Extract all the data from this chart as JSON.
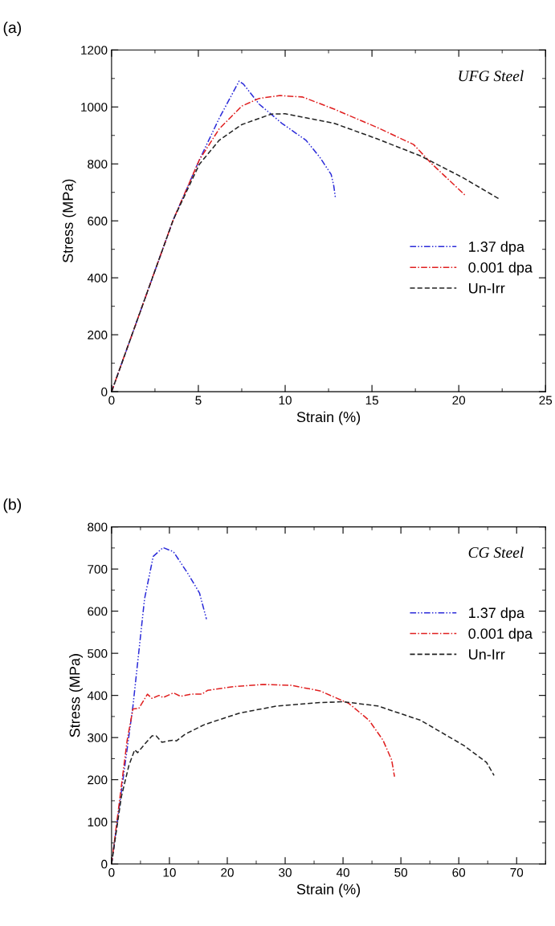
{
  "chart_data": [
    {
      "type": "line",
      "xlabel": "Strain (%)",
      "ylabel": "Stress (MPa)",
      "annotations": [
        "(a)",
        "UFG Steel"
      ],
      "xlim": [
        0,
        25
      ],
      "ylim": [
        0,
        1200
      ],
      "xticks": [
        0,
        5,
        10,
        15,
        20,
        25
      ],
      "yticks": [
        0,
        200,
        400,
        600,
        800,
        1000,
        1200
      ],
      "grid": false,
      "legend": "right",
      "marker": "none",
      "series": [
        {
          "name": "1.37 dpa",
          "color": "#2b2bd9",
          "line_style": "dashdotdot",
          "x": [
            0,
            2,
            3.55,
            5.05,
            6.2,
            7.35,
            7.6,
            8.5,
            9.8,
            11.2,
            12,
            12.65,
            12.8,
            12.9
          ],
          "values": [
            0,
            340,
            603,
            813,
            960,
            1091,
            1080,
            1010,
            943,
            883,
            823,
            763,
            723,
            678
          ]
        },
        {
          "name": "0.001 dpa",
          "color": "#e02020",
          "line_style": "dashdot",
          "x": [
            0,
            2,
            3.55,
            5.05,
            6.2,
            7.5,
            8.5,
            9.7,
            11,
            12.8,
            15.3,
            17.4,
            18.4,
            20.4
          ],
          "values": [
            0,
            340,
            603,
            813,
            923,
            1003,
            1030,
            1040,
            1035,
            993,
            928,
            868,
            803,
            688
          ]
        },
        {
          "name": "Un-Irr",
          "color": "#222222",
          "line_style": "dashed",
          "x": [
            0,
            2,
            3.55,
            5.05,
            6.2,
            7.5,
            9.2,
            10,
            12.8,
            15.3,
            17.8,
            20.2,
            22.3
          ],
          "values": [
            0,
            340,
            603,
            798,
            883,
            938,
            975,
            976,
            943,
            888,
            828,
            753,
            678
          ]
        }
      ]
    },
    {
      "type": "line",
      "xlabel": "Strain (%)",
      "ylabel": "Stress (MPa)",
      "annotations": [
        "(b)",
        "CG Steel"
      ],
      "xlim": [
        0,
        75
      ],
      "ylim": [
        0,
        800
      ],
      "xticks": [
        0,
        10,
        20,
        30,
        40,
        50,
        60,
        70
      ],
      "yticks": [
        0,
        100,
        200,
        300,
        400,
        500,
        600,
        700,
        800
      ],
      "grid": false,
      "legend": "top right",
      "marker": "none",
      "series": [
        {
          "name": "1.37 dpa",
          "color": "#2b2bd9",
          "line_style": "dashdotdot",
          "x": [
            0,
            3.7,
            5.7,
            7.2,
            8.9,
            10.7,
            13.2,
            15.2,
            16.4
          ],
          "values": [
            0,
            375,
            629,
            730,
            751,
            741,
            689,
            643,
            581
          ]
        },
        {
          "name": "0.001 dpa",
          "color": "#e02020",
          "line_style": "dashdot",
          "x": [
            0,
            2.7,
            3.7,
            4.7,
            6.2,
            7.0,
            8.2,
            8.9,
            10.7,
            11.9,
            13.7,
            15.6,
            16.6,
            21.1,
            26.1,
            31,
            36,
            41,
            44.5,
            46.9,
            48.4,
            48.9
          ],
          "values": [
            0,
            294,
            368,
            369,
            403,
            393,
            400,
            395,
            406,
            398,
            403,
            403,
            412,
            421,
            426,
            424,
            411,
            381,
            341,
            294,
            247,
            207
          ]
        },
        {
          "name": "Un-Irr",
          "color": "#222222",
          "line_style": "dashed",
          "x": [
            0,
            1.7,
            3.0,
            4.0,
            4.5,
            5.7,
            7,
            7.7,
            8.7,
            10.7,
            11.2,
            12.7,
            16.1,
            22.1,
            28.6,
            36,
            40,
            46,
            53.4,
            60.9,
            64.8,
            66.1
          ],
          "values": [
            0,
            160,
            234,
            271,
            264,
            284,
            304,
            304,
            289,
            294,
            292,
            308,
            331,
            358,
            375,
            383,
            385,
            375,
            341,
            281,
            241,
            210
          ]
        }
      ]
    }
  ]
}
